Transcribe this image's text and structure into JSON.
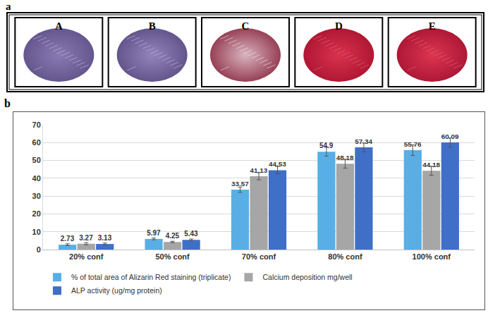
{
  "panel_labels": [
    "a",
    "b"
  ],
  "image_labels": [
    "A",
    "B",
    "C",
    "D",
    "E"
  ],
  "chart_data": {
    "type": "bar",
    "categories": [
      "20% conf",
      "50% conf",
      "70% conf",
      "80% conf",
      "100% conf"
    ],
    "series": [
      {
        "name": "% of total area of Alizarin Red staining (triplicate)",
        "color": "#5aaee6",
        "values": [
          2.73,
          5.97,
          33.57,
          54.9,
          55.76
        ],
        "errors": [
          0.5,
          0.5,
          1.5,
          2.5,
          3
        ]
      },
      {
        "name": "Calcium deposition mg/well",
        "color": "#a6a6a6",
        "values": [
          3.27,
          4.25,
          41.13,
          48.18,
          44.18
        ],
        "errors": [
          0.6,
          0.4,
          2,
          2.5,
          2.5
        ]
      },
      {
        "name": "ALP activity (ug/mg protein)",
        "color": "#3f6fc6",
        "values": [
          3.13,
          5.43,
          44.53,
          57.34,
          60.09
        ],
        "errors": [
          0.5,
          0.5,
          2,
          2.5,
          2.5
        ]
      }
    ],
    "ylim": [
      0,
      70
    ],
    "yticks": [
      0,
      10,
      20,
      30,
      40,
      50,
      60,
      70
    ],
    "grid": true,
    "data_labels": true,
    "legend": "bottom"
  }
}
